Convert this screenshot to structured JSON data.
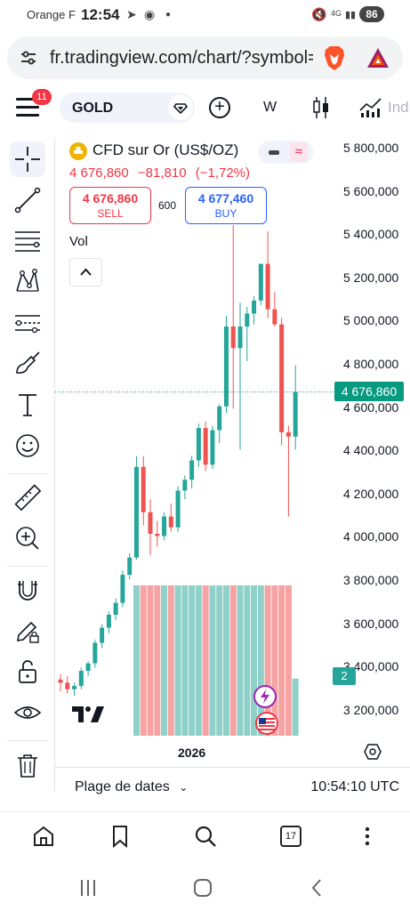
{
  "status_bar": {
    "carrier": "Orange F",
    "time": "12:54",
    "network": "4G",
    "battery": "86"
  },
  "browser": {
    "url": "fr.tradingview.com/chart/?symbol="
  },
  "toolbar": {
    "notification_count": "11",
    "symbol": "GOLD",
    "interval": "W",
    "indicators_label": "Ind"
  },
  "instrument": {
    "title": "CFD sur Or (US$/OZ)",
    "last_price": "4 676,860",
    "change": "−81,810",
    "change_pct": "(−1,72%)",
    "sell_price": "4 676,860",
    "sell_label": "SELL",
    "spread": "600",
    "buy_price": "4 677,460",
    "buy_label": "BUY",
    "volume_label": "Vol"
  },
  "price_scale": {
    "labels": [
      "5 800,000",
      "5 600,000",
      "5 400,000",
      "5 200,000",
      "5 000,000",
      "4 800,000",
      "4 600,000",
      "4 400,000",
      "4 200,000",
      "4 000,000",
      "3 800,000",
      "3 600,000",
      "3 400,000",
      "3 200,000"
    ],
    "last_price_tag": "4 676,860",
    "volume_tag": "2"
  },
  "time_axis": {
    "label": "2026"
  },
  "bottom": {
    "date_range_label": "Plage de dates",
    "clock": "10:54:10 UTC"
  },
  "browser_nav": {
    "tabs_count": "17"
  },
  "colors": {
    "up": "#26a69a",
    "down": "#ef5350",
    "accent": "#2962ff",
    "last_price_bg": "#089981"
  },
  "chart_data": {
    "type": "candlestick",
    "interval": "W",
    "ylim": [
      3150,
      5850
    ],
    "candles": [
      {
        "o": 3345,
        "h": 3370,
        "l": 3290,
        "c": 3330
      },
      {
        "o": 3330,
        "h": 3360,
        "l": 3280,
        "c": 3300
      },
      {
        "o": 3300,
        "h": 3330,
        "l": 3270,
        "c": 3315
      },
      {
        "o": 3315,
        "h": 3400,
        "l": 3300,
        "c": 3385
      },
      {
        "o": 3385,
        "h": 3430,
        "l": 3360,
        "c": 3420
      },
      {
        "o": 3420,
        "h": 3530,
        "l": 3400,
        "c": 3515
      },
      {
        "o": 3515,
        "h": 3600,
        "l": 3490,
        "c": 3585
      },
      {
        "o": 3585,
        "h": 3660,
        "l": 3560,
        "c": 3645
      },
      {
        "o": 3645,
        "h": 3720,
        "l": 3620,
        "c": 3700
      },
      {
        "o": 3700,
        "h": 3850,
        "l": 3680,
        "c": 3830
      },
      {
        "o": 3830,
        "h": 3930,
        "l": 3810,
        "c": 3910
      },
      {
        "o": 3910,
        "h": 4380,
        "l": 3900,
        "c": 4330
      },
      {
        "o": 4330,
        "h": 4380,
        "l": 4060,
        "c": 4120
      },
      {
        "o": 4120,
        "h": 4180,
        "l": 3920,
        "c": 4020
      },
      {
        "o": 4020,
        "h": 4080,
        "l": 3960,
        "c": 4010
      },
      {
        "o": 4010,
        "h": 4120,
        "l": 3990,
        "c": 4100
      },
      {
        "o": 4100,
        "h": 4160,
        "l": 4030,
        "c": 4050
      },
      {
        "o": 4050,
        "h": 4240,
        "l": 4030,
        "c": 4220
      },
      {
        "o": 4220,
        "h": 4290,
        "l": 4180,
        "c": 4270
      },
      {
        "o": 4270,
        "h": 4380,
        "l": 4230,
        "c": 4360
      },
      {
        "o": 4360,
        "h": 4530,
        "l": 4330,
        "c": 4510
      },
      {
        "o": 4510,
        "h": 4540,
        "l": 4310,
        "c": 4340
      },
      {
        "o": 4340,
        "h": 4520,
        "l": 4320,
        "c": 4500
      },
      {
        "o": 4500,
        "h": 4620,
        "l": 4440,
        "c": 4610
      },
      {
        "o": 4610,
        "h": 5030,
        "l": 4580,
        "c": 4980
      },
      {
        "o": 4980,
        "h": 5450,
        "l": 4600,
        "c": 4880
      },
      {
        "o": 4880,
        "h": 5090,
        "l": 4410,
        "c": 4980
      },
      {
        "o": 4980,
        "h": 5070,
        "l": 4820,
        "c": 5040
      },
      {
        "o": 5040,
        "h": 5120,
        "l": 4990,
        "c": 5100
      },
      {
        "o": 5100,
        "h": 5270,
        "l": 5080,
        "c": 5270
      },
      {
        "o": 5270,
        "h": 5420,
        "l": 5020,
        "c": 5060
      },
      {
        "o": 5060,
        "h": 5140,
        "l": 4980,
        "c": 4990
      },
      {
        "o": 4990,
        "h": 5020,
        "l": 4430,
        "c": 4490
      },
      {
        "o": 4490,
        "h": 4520,
        "l": 4100,
        "c": 4470
      },
      {
        "o": 4470,
        "h": 4800,
        "l": 4410,
        "c": 4677
      }
    ],
    "volume": [
      0,
      0,
      0,
      0,
      0,
      0,
      0,
      0,
      0,
      0,
      0,
      1,
      1,
      1,
      1,
      1,
      1,
      1,
      1,
      1,
      1,
      1,
      1,
      1,
      1,
      1,
      1,
      1,
      1,
      1,
      1,
      1,
      1,
      1,
      0.38
    ],
    "last_price": 4676.86
  }
}
